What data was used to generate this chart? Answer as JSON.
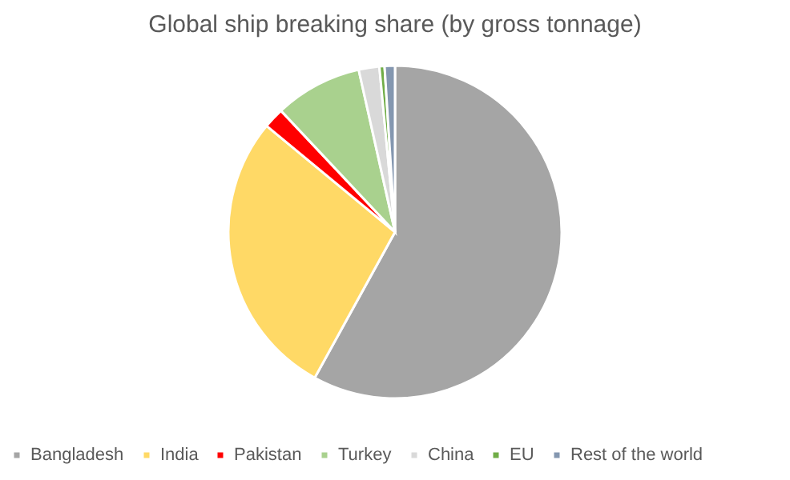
{
  "chart_data": {
    "type": "pie",
    "title": "Global ship breaking share (by gross tonnage)",
    "categories": [
      "Bangladesh",
      "India",
      "Pakistan",
      "Turkey",
      "China",
      "EU",
      "Rest of the world"
    ],
    "values": [
      58,
      28,
      2,
      8.5,
      2,
      0.5,
      1
    ],
    "colors": [
      "#a5a5a5",
      "#ffd966",
      "#ff0000",
      "#a9d18e",
      "#d9d9d9",
      "#70ad47",
      "#8497b0"
    ],
    "legend": "bottom"
  }
}
